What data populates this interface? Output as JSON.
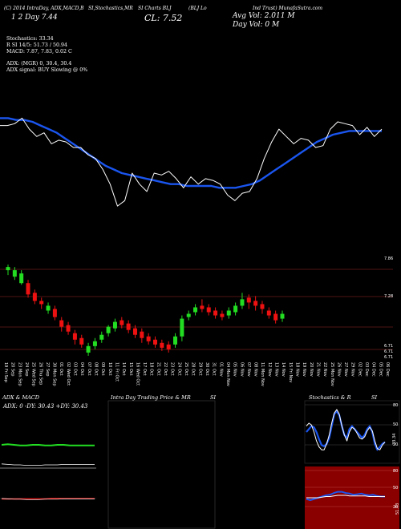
{
  "header": {
    "line1_a": "(C) 2014 IntraDay, ADX,MACD,B",
    "line1_b": "SI,Stochastics,MR",
    "line1_c": "SI Charts BLJ",
    "line1_d": "(BLJ Lo",
    "line1_e": "Ind Trust) MunafaSutra.com",
    "line2": "1 2 Day  7.44",
    "close": "CL: 7.52",
    "avg_vol": "Avg Vol: 2.011 M",
    "day_vol": "Day Vol: 0   M"
  },
  "stats": {
    "stochastics": "Stochastics: 33.34",
    "rsi": "R          SI 14/5: 51.73 / 50.94",
    "macd": "MACD: 7.87, 7.83, 0.02  C",
    "adx": "ADX:                  (MGR) 0, 30.4, 30.4",
    "adx_signal": "ADX  signal:                    BUY Slowing @ 0%"
  },
  "candle_labels": {
    "right_top": "7.86",
    "right_mid": "7.28",
    "right_low1": "6.71",
    "right_low2": "6.71",
    "right_low3": "6.71"
  },
  "dates": [
    "19 Fri Sep",
    "20 Sep",
    "23 Mon Sep",
    "24 Sep",
    "25 Wed Sep",
    "26 Thu Sep",
    "27 Sep",
    "30 Mon Sep",
    "01 Oct",
    "02 Wed Oct",
    "03 Oct",
    "04 Oct",
    "07 Oct",
    "08 Oct",
    "09 Oct",
    "10 Oct",
    "11 Fri Oct",
    "14 Oct",
    "15 Oct",
    "16 Wed Oct",
    "17 Oct",
    "18 Oct",
    "21 Oct",
    "22 Oct",
    "23 Oct",
    "24 Oct",
    "25 Oct",
    "28 Oct",
    "29 Oct",
    "30 Oct",
    "31 Oct",
    "01 Nov",
    "04 Mon Nov",
    "05 Nov",
    "06 Nov",
    "07 Nov",
    "08 Nov",
    "11 Mon Nov",
    "12 Nov",
    "13 Nov",
    "14 Nov",
    "15 Fri Nov",
    "18 Nov",
    "19 Nov",
    "20 Nov",
    "21 Nov",
    "22 Nov",
    "25 Mon Nov",
    "26 Nov",
    "27 Nov",
    "29 Nov",
    "02 Dec",
    "03 Dec",
    "04 Dec",
    "05 Dec",
    "06 Dec"
  ],
  "panels": {
    "adx_title": "ADX  & MACD",
    "adx_text": "ADX: 0   -DY: 30.43  +DY: 30.43",
    "intraday_title": "Intra  Day Trading Price  & MR",
    "intraday_title_b": "SI",
    "stoch_title": "Stochastics & R",
    "stoch_title_b": "SI",
    "stoch_labels": [
      "80",
      "50",
      "20",
      "33.34"
    ],
    "rsi_labels": [
      "80",
      "50",
      "20",
      "51.73"
    ]
  },
  "chart_data": {
    "type": "line",
    "title": "BLJ",
    "price_line": [
      7.54,
      7.54,
      7.55,
      7.58,
      7.52,
      7.48,
      7.5,
      7.44,
      7.46,
      7.45,
      7.42,
      7.42,
      7.38,
      7.36,
      7.3,
      7.22,
      7.1,
      7.13,
      7.28,
      7.22,
      7.18,
      7.28,
      7.27,
      7.29,
      7.25,
      7.2,
      7.26,
      7.22,
      7.25,
      7.24,
      7.22,
      7.16,
      7.13,
      7.17,
      7.18,
      7.25,
      7.36,
      7.45,
      7.52,
      7.48,
      7.44,
      7.47,
      7.46,
      7.42,
      7.43,
      7.52,
      7.56,
      7.55,
      7.54,
      7.49,
      7.53,
      7.48,
      7.52
    ],
    "ma_line": [
      7.58,
      7.58,
      7.57,
      7.57,
      7.56,
      7.54,
      7.52,
      7.5,
      7.47,
      7.44,
      7.41,
      7.38,
      7.35,
      7.32,
      7.3,
      7.28,
      7.27,
      7.26,
      7.25,
      7.24,
      7.23,
      7.22,
      7.22,
      7.21,
      7.21,
      7.21,
      7.21,
      7.2,
      7.2,
      7.2,
      7.21,
      7.22,
      7.24,
      7.27,
      7.3,
      7.33,
      7.36,
      7.39,
      7.42,
      7.45,
      7.47,
      7.49,
      7.5,
      7.51,
      7.51,
      7.51,
      7.51,
      7.51
    ],
    "candles": [
      {
        "o": 7.78,
        "c": 7.82,
        "h": 7.85,
        "l": 7.72
      },
      {
        "o": 7.7,
        "c": 7.78,
        "h": 7.82,
        "l": 7.66
      },
      {
        "o": 7.62,
        "c": 7.74,
        "h": 7.78,
        "l": 7.6
      },
      {
        "o": 7.62,
        "c": 7.48,
        "h": 7.66,
        "l": 7.44
      },
      {
        "o": 7.5,
        "c": 7.4,
        "h": 7.54,
        "l": 7.36
      },
      {
        "o": 7.4,
        "c": 7.36,
        "h": 7.44,
        "l": 7.3
      },
      {
        "o": 7.28,
        "c": 7.34,
        "h": 7.38,
        "l": 7.24
      },
      {
        "o": 7.3,
        "c": 7.2,
        "h": 7.34,
        "l": 7.16
      },
      {
        "o": 7.16,
        "c": 7.08,
        "h": 7.2,
        "l": 7.02
      },
      {
        "o": 7.1,
        "c": 7.02,
        "h": 7.14,
        "l": 6.98
      },
      {
        "o": 7.0,
        "c": 6.92,
        "h": 7.04,
        "l": 6.86
      },
      {
        "o": 6.94,
        "c": 6.86,
        "h": 6.98,
        "l": 6.82
      },
      {
        "o": 6.76,
        "c": 6.84,
        "h": 6.88,
        "l": 6.72
      },
      {
        "o": 6.84,
        "c": 6.9,
        "h": 6.94,
        "l": 6.8
      },
      {
        "o": 6.92,
        "c": 6.98,
        "h": 7.02,
        "l": 6.88
      },
      {
        "o": 7.0,
        "c": 7.08,
        "h": 7.1,
        "l": 6.96
      },
      {
        "o": 7.06,
        "c": 7.14,
        "h": 7.18,
        "l": 7.02
      },
      {
        "o": 7.16,
        "c": 7.1,
        "h": 7.2,
        "l": 7.06
      },
      {
        "o": 7.12,
        "c": 7.04,
        "h": 7.16,
        "l": 7.0
      },
      {
        "o": 7.06,
        "c": 6.98,
        "h": 7.1,
        "l": 6.94
      },
      {
        "o": 7.02,
        "c": 6.94,
        "h": 7.06,
        "l": 6.88
      },
      {
        "o": 6.96,
        "c": 6.9,
        "h": 7.0,
        "l": 6.86
      },
      {
        "o": 6.92,
        "c": 6.86,
        "h": 6.96,
        "l": 6.82
      },
      {
        "o": 6.88,
        "c": 6.82,
        "h": 6.92,
        "l": 6.78
      },
      {
        "o": 6.86,
        "c": 6.8,
        "h": 6.9,
        "l": 6.76
      },
      {
        "o": 6.86,
        "c": 6.96,
        "h": 7.0,
        "l": 6.82
      },
      {
        "o": 6.96,
        "c": 7.18,
        "h": 7.22,
        "l": 6.9
      },
      {
        "o": 7.2,
        "c": 7.24,
        "h": 7.28,
        "l": 7.16
      },
      {
        "o": 7.26,
        "c": 7.32,
        "h": 7.36,
        "l": 7.22
      },
      {
        "o": 7.34,
        "c": 7.3,
        "h": 7.42,
        "l": 7.26
      },
      {
        "o": 7.32,
        "c": 7.26,
        "h": 7.36,
        "l": 7.22
      },
      {
        "o": 7.28,
        "c": 7.22,
        "h": 7.32,
        "l": 7.18
      },
      {
        "o": 7.24,
        "c": 7.2,
        "h": 7.28,
        "l": 7.16
      },
      {
        "o": 7.22,
        "c": 7.28,
        "h": 7.32,
        "l": 7.18
      },
      {
        "o": 7.26,
        "c": 7.34,
        "h": 7.38,
        "l": 7.22
      },
      {
        "o": 7.34,
        "c": 7.42,
        "h": 7.5,
        "l": 7.3
      },
      {
        "o": 7.44,
        "c": 7.38,
        "h": 7.48,
        "l": 7.3
      },
      {
        "o": 7.4,
        "c": 7.34,
        "h": 7.46,
        "l": 7.28
      },
      {
        "o": 7.36,
        "c": 7.3,
        "h": 7.4,
        "l": 7.24
      },
      {
        "o": 7.28,
        "c": 7.22,
        "h": 7.32,
        "l": 7.18
      },
      {
        "o": 7.24,
        "c": 7.16,
        "h": 7.28,
        "l": 7.12
      },
      {
        "o": 7.18,
        "c": 7.24,
        "h": 7.28,
        "l": 7.14
      }
    ],
    "candle_range": [
      6.6,
      7.95
    ],
    "line_range": [
      7.0,
      7.7
    ],
    "adx_green": [
      20,
      21,
      20,
      19,
      19,
      20,
      20,
      19,
      19,
      20,
      20,
      19,
      19,
      19,
      19,
      19
    ],
    "macd_white": [
      18,
      17,
      16,
      16,
      15,
      15,
      15,
      16,
      16,
      16,
      17,
      17,
      17,
      17,
      17,
      17
    ],
    "macd_red": [
      15,
      15,
      15,
      15,
      15,
      15,
      15,
      15,
      16,
      16,
      16,
      16,
      16,
      16,
      16,
      16
    ],
    "stoch_blue": [
      50,
      55,
      60,
      58,
      50,
      38,
      28,
      26,
      30,
      40,
      60,
      80,
      85,
      78,
      60,
      45,
      40,
      55,
      60,
      55,
      50,
      45,
      40,
      45,
      55,
      60,
      50,
      30,
      20,
      25,
      30,
      33
    ],
    "stoch_white": [
      60,
      65,
      62,
      50,
      35,
      25,
      20,
      20,
      30,
      45,
      65,
      82,
      88,
      80,
      60,
      45,
      35,
      50,
      58,
      55,
      48,
      40,
      38,
      42,
      52,
      58,
      52,
      35,
      22,
      20,
      28,
      33
    ],
    "rsi_blue": [
      48,
      46,
      48,
      50,
      52,
      54,
      55,
      58,
      60,
      60,
      58,
      57,
      55,
      56,
      57,
      55,
      54,
      55,
      53,
      52,
      52
    ],
    "rsi_white": [
      50,
      50,
      50,
      50,
      51,
      52,
      52,
      53,
      54,
      54,
      54,
      53,
      53,
      53,
      53,
      53,
      52,
      52,
      52,
      52,
      52
    ]
  },
  "colors": {
    "up": "#22dd22",
    "down": "#ee1111",
    "ma": "#1a55ee",
    "price": "#ffffff",
    "rsi_bg": "#8a0000",
    "stoch_bg": "#000000",
    "hline": "#7a2020"
  }
}
